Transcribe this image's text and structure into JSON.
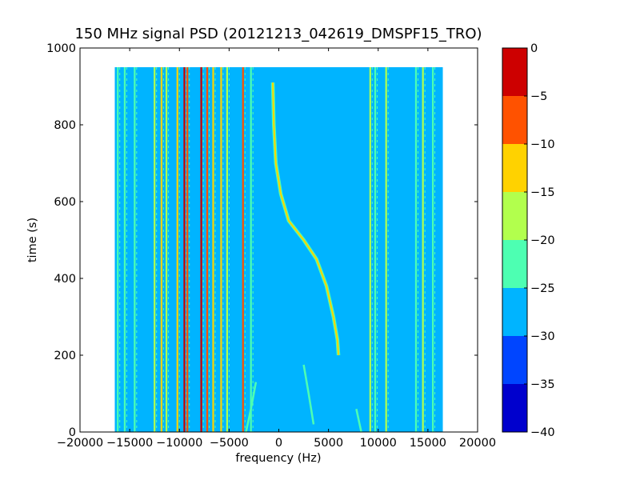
{
  "chart_data": {
    "type": "heatmap",
    "title": "150 MHz signal PSD (20121213_042619_DMSPF15_TRO)",
    "xlabel": "frequency (Hz)",
    "ylabel": "time (s)",
    "xlim": [
      -20000,
      20000
    ],
    "ylim": [
      0,
      1000
    ],
    "data_extent": {
      "x": [
        -16500,
        16500
      ],
      "y": [
        0,
        950
      ]
    },
    "x_ticks": [
      -20000,
      -15000,
      -10000,
      -5000,
      0,
      5000,
      10000,
      15000,
      20000
    ],
    "x_tick_labels": [
      "−20000",
      "−15000",
      "−10000",
      "−5000",
      "0",
      "5000",
      "10000",
      "15000",
      "20000"
    ],
    "y_ticks": [
      0,
      200,
      400,
      600,
      800,
      1000
    ],
    "y_tick_labels": [
      "0",
      "200",
      "400",
      "600",
      "800",
      "1000"
    ],
    "colorbar": {
      "levels": [
        -40,
        -35,
        -30,
        -25,
        -20,
        -15,
        -10,
        -5,
        0
      ],
      "tick_labels": [
        "−40",
        "−35",
        "−30",
        "−25",
        "−20",
        "−15",
        "−10",
        "−5",
        "0"
      ],
      "colors": [
        "#0000cd",
        "#0045ff",
        "#00b4ff",
        "#4dffb2",
        "#b2ff4d",
        "#ffd200",
        "#ff5200",
        "#cd0000"
      ]
    },
    "background_level_db": -27.5,
    "vertical_lines": [
      {
        "freq": -16200,
        "level_db": -22
      },
      {
        "freq": -15500,
        "level_db": -22
      },
      {
        "freq": -14500,
        "level_db": -22
      },
      {
        "freq": -12500,
        "level_db": -17
      },
      {
        "freq": -11800,
        "level_db": -12
      },
      {
        "freq": -11300,
        "level_db": -17
      },
      {
        "freq": -10200,
        "level_db": -12
      },
      {
        "freq": -9500,
        "level_db": -2
      },
      {
        "freq": -9200,
        "level_db": -7
      },
      {
        "freq": -7800,
        "level_db": -2
      },
      {
        "freq": -7200,
        "level_db": -7
      },
      {
        "freq": -6600,
        "level_db": -12
      },
      {
        "freq": -5800,
        "level_db": -12
      },
      {
        "freq": -5200,
        "level_db": -17
      },
      {
        "freq": -3600,
        "level_db": -7
      },
      {
        "freq": -2800,
        "level_db": -22
      },
      {
        "freq": 9200,
        "level_db": -17
      },
      {
        "freq": 9700,
        "level_db": -22
      },
      {
        "freq": 10800,
        "level_db": -17
      },
      {
        "freq": 13800,
        "level_db": -22
      },
      {
        "freq": 14500,
        "level_db": -17
      },
      {
        "freq": 15500,
        "level_db": -22
      }
    ],
    "doppler_trace": {
      "level_db": -12,
      "points": [
        [
          -600,
          910
        ],
        [
          -500,
          800
        ],
        [
          -300,
          700
        ],
        [
          200,
          620
        ],
        [
          1000,
          550
        ],
        [
          2500,
          500
        ],
        [
          3800,
          450
        ],
        [
          4800,
          380
        ],
        [
          5500,
          300
        ],
        [
          5900,
          240
        ],
        [
          6000,
          200
        ]
      ]
    },
    "faint_traces": [
      {
        "level_db": -22,
        "points": [
          [
            2500,
            175
          ],
          [
            3000,
            100
          ],
          [
            3500,
            20
          ]
        ]
      },
      {
        "level_db": -22,
        "points": [
          [
            -2300,
            130
          ],
          [
            -2800,
            60
          ],
          [
            -3300,
            0
          ]
        ]
      },
      {
        "level_db": -22,
        "points": [
          [
            7800,
            60
          ],
          [
            8300,
            0
          ]
        ]
      }
    ]
  }
}
